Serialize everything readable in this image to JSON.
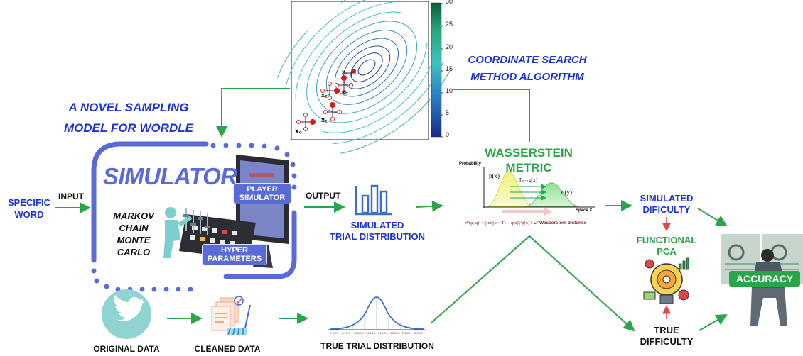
{
  "title": {
    "line1": "A NOVEL SAMPLING",
    "line2": "MODEL FOR WORDLE"
  },
  "coordinate": {
    "line1": "COORDINATE SEARCH",
    "line2": "METHOD ALGORITHM"
  },
  "contour": {
    "colorbar_ticks": [
      "30",
      "25",
      "20",
      "15",
      "10",
      "5",
      "0"
    ],
    "points": [
      "x₀",
      "x₁",
      "x₂",
      "x₃",
      "x₄"
    ]
  },
  "simulator": {
    "title": "SIMULATOR",
    "mcmc": [
      "MARKOV",
      "CHAIN",
      "MONTE",
      "CARLO"
    ],
    "player": [
      "PLAYER",
      "SIMULATOR"
    ],
    "hyper": [
      "HYPER",
      "PARAMETERS"
    ]
  },
  "input": {
    "word_line1": "SPECIFIC",
    "word_line2": "WORD",
    "arrow_label": "INPUT"
  },
  "output_label": "OUTPUT",
  "simulated_trial": {
    "line1": "SIMULATED",
    "line2": "TRIAL DISTRIBUTION"
  },
  "wasserstein": {
    "line1": "WASSERSTEIN",
    "line2": "METRIC",
    "ylabel": "Probability",
    "xlabel": "Space X",
    "px": "p(x)",
    "qy": "q(y)",
    "transport": "Tₚ→q(x)",
    "formula": "W(p, q)² = ∫ dx||x − Tₚ→q(x)||²p(x)",
    "formula_note": ": L²-Wasserstein distance"
  },
  "simulated_difficulty": {
    "line1": "SIMULATED",
    "line2": "DIFICULTY"
  },
  "functional_pca": {
    "line1": "FUNCTIONAL",
    "line2": "PCA"
  },
  "true_difficulty": {
    "line1": "TRUE",
    "line2": "DIFFICULTY"
  },
  "accuracy": "ACCURACY",
  "original_data": "ORIGINAL DATA",
  "cleaned_data": "CLEANED DATA",
  "true_trial": {
    "label": "TRUE TRIAL DISTRIBUTION",
    "ticks": [
      "0.13%",
      "2.14%",
      "13.59%",
      "34.13%",
      "34.13%",
      "13.59%",
      "2.14%",
      "0.13%"
    ]
  },
  "colors": {
    "blue": "#1b32d8",
    "green": "#2aa54a",
    "frame": "#5b6bd6",
    "teal": "#7dcfcf"
  }
}
